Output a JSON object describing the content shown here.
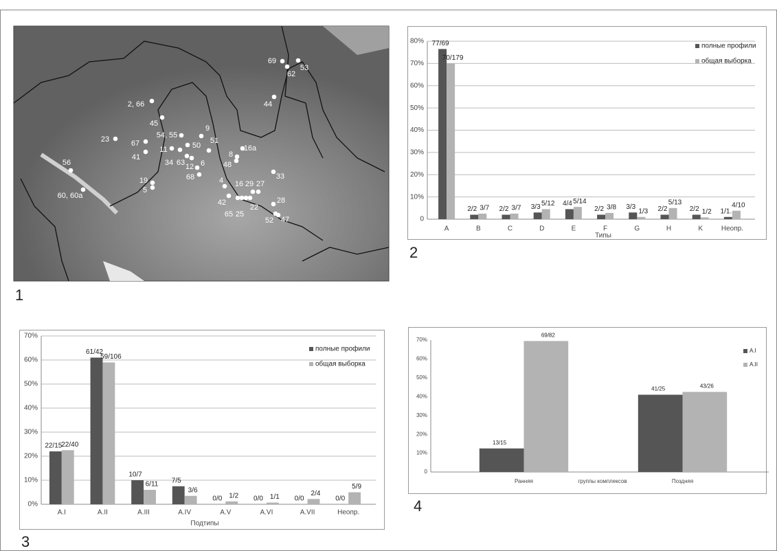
{
  "panel_labels": [
    "1",
    "2",
    "3",
    "4"
  ],
  "map": {
    "labels": [
      "69",
      "53",
      "62",
      "44",
      "2, 66",
      "45",
      "23",
      "67",
      "54, 55",
      "9",
      "50",
      "51",
      "11",
      "41",
      "34",
      "63",
      "12",
      "6",
      "8",
      "16a",
      "48",
      "68",
      "33",
      "19",
      "5",
      "4",
      "56",
      "60, 60a",
      "16",
      "29",
      "27",
      "42",
      "22",
      "65",
      "25",
      "28",
      "52",
      "47"
    ]
  },
  "chart_data": [
    {
      "type": "bar",
      "xlabel": "Типы",
      "categories": [
        "A",
        "B",
        "C",
        "D",
        "E",
        "F",
        "G",
        "H",
        "K",
        "Неопр."
      ],
      "series": [
        {
          "name": "полные профили",
          "color": "#555555",
          "values": [
            76.5,
            2,
            2,
            3,
            4.5,
            2,
            3,
            2,
            2,
            1
          ],
          "value_labels": [
            "77/69",
            "2/2",
            "2/2",
            "3/3",
            "4/4",
            "2/2",
            "3/3",
            "2/2",
            "2/2",
            "1/1."
          ]
        },
        {
          "name": "общая выборка",
          "color": "#b3b3b3",
          "values": [
            70,
            2.5,
            2.5,
            4.5,
            5.5,
            2.8,
            1,
            5,
            0.8,
            3.8
          ],
          "value_labels": [
            "70/179",
            "3/7",
            "3/7",
            "5/12",
            "5/14",
            "3/8",
            "1/3",
            "5/13",
            "1/2",
            "4/10"
          ]
        }
      ],
      "ylim": [
        0,
        80
      ],
      "yticks": [
        0,
        {
          "value": 10,
          "label": "10%"
        },
        {
          "value": 20,
          "label": "20%"
        },
        {
          "value": 30,
          "label": "30%"
        },
        {
          "value": 40,
          "label": "40%"
        },
        {
          "value": 50,
          "label": "50%"
        },
        {
          "value": 60,
          "label": "60%"
        },
        {
          "value": 70,
          "label": "70%"
        },
        {
          "value": 80,
          "label": "80%"
        }
      ],
      "grid": true,
      "legend": "top-right"
    },
    {
      "type": "bar",
      "xlabel": "Подтипы",
      "categories": [
        "A.I",
        "A.II",
        "A.III",
        "A.IV",
        "A.V",
        "A.VI",
        "A.VII",
        "Неопр."
      ],
      "series": [
        {
          "name": "полные профили",
          "color": "#555555",
          "values": [
            22,
            61,
            10,
            7.5,
            0,
            0,
            0,
            0
          ],
          "value_labels": [
            "22/15",
            "61/42",
            "10/7",
            "7/5",
            "0/0",
            "0/0",
            "0/0",
            "0/0"
          ]
        },
        {
          "name": "общая выборка",
          "color": "#b3b3b3",
          "values": [
            22.5,
            59,
            6,
            3.5,
            1.2,
            0.7,
            2.2,
            5
          ],
          "value_labels": [
            "22/40",
            "59/106",
            "6/11",
            "3/6",
            "1/2",
            "1/1",
            "2/4",
            "5/9"
          ]
        }
      ],
      "ylim": [
        0,
        70
      ],
      "yticks": [
        {
          "value": 0,
          "label": "0%"
        },
        {
          "value": 10,
          "label": "10%"
        },
        {
          "value": 20,
          "label": "20%"
        },
        {
          "value": 30,
          "label": "30%"
        },
        {
          "value": 40,
          "label": "40%"
        },
        {
          "value": 50,
          "label": "50%"
        },
        {
          "value": 60,
          "label": "60%"
        },
        {
          "value": 70,
          "label": "70%"
        }
      ],
      "grid": true,
      "legend": "top-right"
    },
    {
      "type": "bar",
      "xlabel": "группы комплексов",
      "categories": [
        "Ранняя",
        "Поздняя"
      ],
      "series": [
        {
          "name": "A.I",
          "color": "#555555",
          "values": [
            12.5,
            41
          ],
          "value_labels": [
            "13/15",
            "41/25"
          ]
        },
        {
          "name": "A.II",
          "color": "#b3b3b3",
          "values": [
            69.5,
            42.5
          ],
          "value_labels": [
            "69/82",
            "43/26"
          ]
        }
      ],
      "ylim": [
        0,
        70
      ],
      "yticks": [
        0,
        {
          "value": 10,
          "label": "10%"
        },
        {
          "value": 20,
          "label": "20%"
        },
        {
          "value": 30,
          "label": "30%"
        },
        {
          "value": 40,
          "label": "40%"
        },
        {
          "value": 50,
          "label": "50%"
        },
        {
          "value": 60,
          "label": "60%"
        },
        {
          "value": 70,
          "label": "70%"
        }
      ],
      "grid": false,
      "legend": "top-right"
    }
  ]
}
